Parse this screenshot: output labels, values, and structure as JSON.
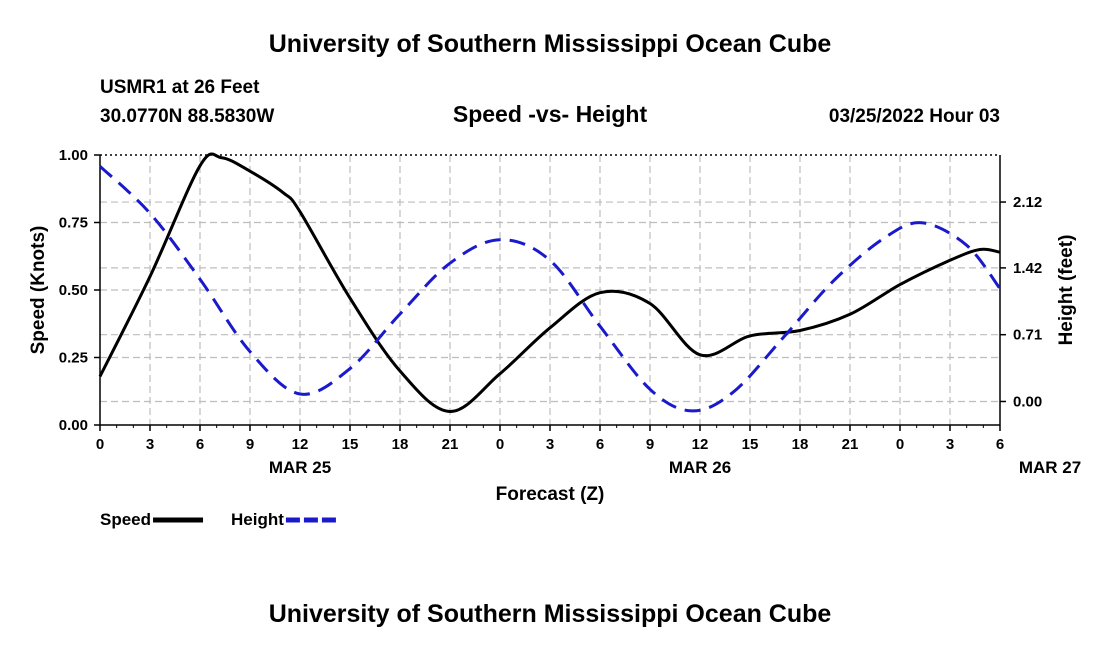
{
  "page": {
    "title": "University of Southern Mississippi Ocean Cube",
    "station": "USMR1 at 26 Feet",
    "coords": "30.0770N  88.5830W",
    "subtitle": "Speed -vs- Height",
    "datetime": "03/25/2022 Hour 03",
    "footer_title": "University of Southern Mississippi Ocean Cube"
  },
  "chart_data": {
    "type": "line",
    "title": "Speed -vs- Height",
    "xlabel": "Forecast (Z)",
    "ylabel": "Speed (Knots)",
    "y2label": "Height (feet)",
    "x_ticks": [
      "0",
      "3",
      "6",
      "9",
      "12",
      "15",
      "18",
      "21",
      "0",
      "3",
      "6",
      "9",
      "12",
      "15",
      "18",
      "21",
      "0",
      "3",
      "6"
    ],
    "date_labels": [
      {
        "label": "MAR 25",
        "hour": 12
      },
      {
        "label": "MAR 26",
        "hour": 36
      },
      {
        "label": "MAR 27",
        "hour": 57
      }
    ],
    "xlim": [
      0,
      54
    ],
    "ylim": [
      0,
      1.0
    ],
    "y_ticks": [
      "0.00",
      "0.25",
      "0.50",
      "0.75",
      "1.00"
    ],
    "y2lim": [
      -0.25,
      2.62
    ],
    "y2_ticks": [
      "0.00",
      "0.71",
      "1.42",
      "2.12"
    ],
    "grid": true,
    "colors": {
      "speed": "#000000",
      "height": "#1a1acc",
      "grid": "#bdbdbd"
    },
    "legend": [
      {
        "name": "Speed",
        "color": "#000000",
        "style": "solid"
      },
      {
        "name": "Height",
        "color": "#1a1acc",
        "style": "dashed"
      }
    ],
    "series": [
      {
        "name": "Speed",
        "axis": "left",
        "x": [
          0,
          3,
          6,
          7.3,
          9,
          11,
          12,
          15,
          18,
          21,
          24,
          27,
          30,
          33,
          36,
          39,
          42,
          45,
          48,
          51,
          52.8,
          54
        ],
        "values": [
          0.18,
          0.55,
          0.96,
          0.99,
          0.94,
          0.86,
          0.79,
          0.47,
          0.2,
          0.05,
          0.19,
          0.36,
          0.49,
          0.45,
          0.26,
          0.33,
          0.35,
          0.41,
          0.52,
          0.61,
          0.65,
          0.64
        ]
      },
      {
        "name": "Height",
        "axis": "right",
        "x": [
          0,
          3,
          6,
          9,
          12,
          15,
          18,
          21,
          24,
          27,
          30,
          33,
          35.5,
          38,
          41,
          44,
          47,
          49.3,
          52,
          54
        ],
        "values": [
          2.5,
          2.0,
          1.3,
          0.53,
          0.08,
          0.35,
          0.93,
          1.47,
          1.72,
          1.5,
          0.8,
          0.13,
          -0.1,
          0.1,
          0.68,
          1.28,
          1.73,
          1.9,
          1.66,
          1.2
        ]
      }
    ]
  }
}
